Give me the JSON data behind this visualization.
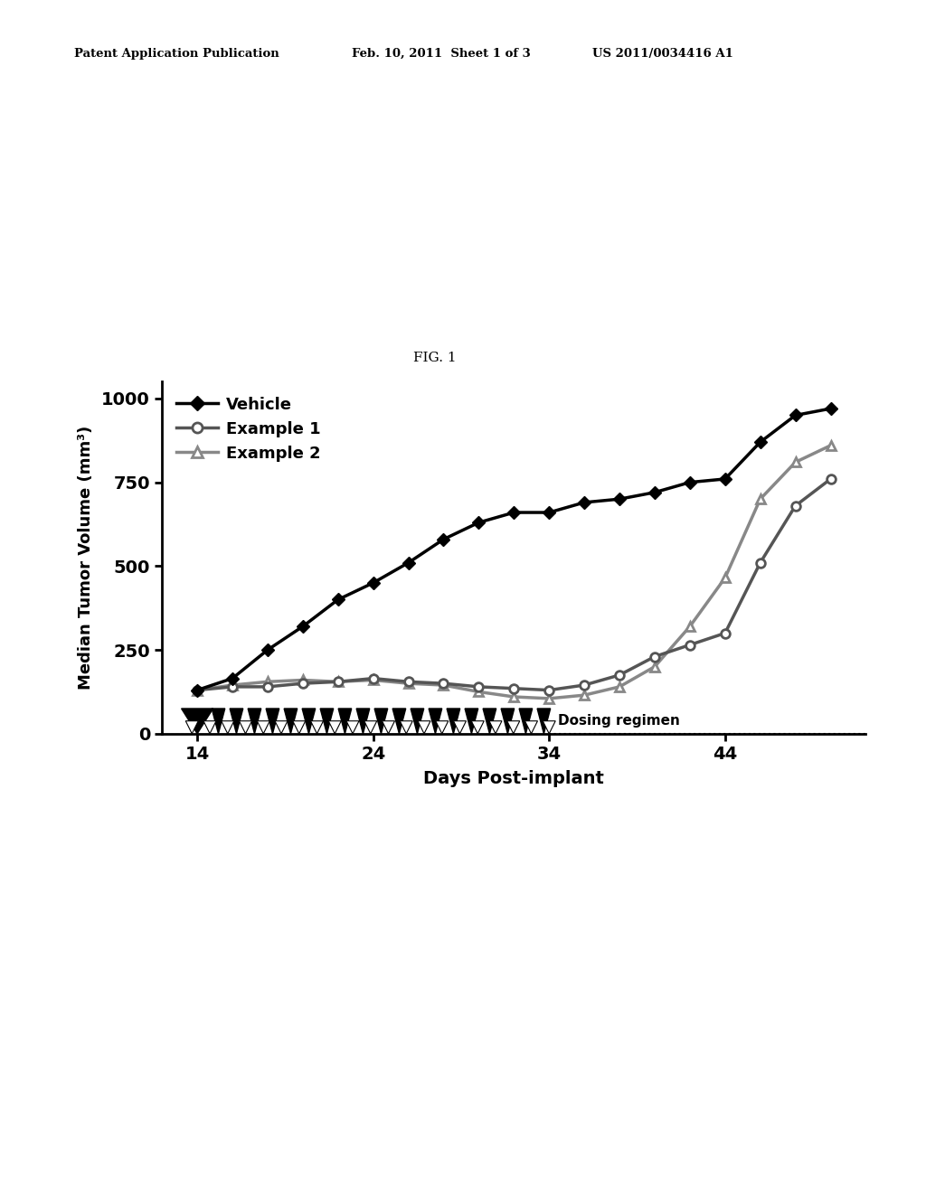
{
  "fig_label": "FIG. 1",
  "xlabel": "Days Post-implant",
  "ylabel": "Median Tumor Volume (mm³)",
  "xlim": [
    12,
    52
  ],
  "ylim": [
    0,
    1050
  ],
  "xticks": [
    14,
    24,
    34,
    44
  ],
  "yticks": [
    0,
    250,
    500,
    750,
    1000
  ],
  "vehicle_x": [
    14,
    16,
    18,
    20,
    22,
    24,
    26,
    28,
    30,
    32,
    34,
    36,
    38,
    40,
    42,
    44,
    46,
    48,
    50
  ],
  "vehicle_y": [
    130,
    165,
    250,
    320,
    400,
    450,
    510,
    580,
    630,
    660,
    660,
    690,
    700,
    720,
    750,
    760,
    870,
    950,
    970
  ],
  "example1_x": [
    14,
    16,
    18,
    20,
    22,
    24,
    26,
    28,
    30,
    32,
    34,
    36,
    38,
    40,
    42,
    44,
    46,
    48,
    50
  ],
  "example1_y": [
    130,
    140,
    140,
    150,
    155,
    165,
    155,
    150,
    140,
    135,
    130,
    145,
    175,
    230,
    265,
    300,
    510,
    680,
    760
  ],
  "example2_x": [
    14,
    16,
    18,
    20,
    22,
    24,
    26,
    28,
    30,
    32,
    34,
    36,
    38,
    40,
    42,
    44,
    46,
    48,
    50
  ],
  "example2_y": [
    130,
    145,
    155,
    160,
    155,
    160,
    150,
    145,
    125,
    110,
    105,
    115,
    140,
    200,
    320,
    465,
    700,
    810,
    860
  ],
  "vehicle_color": "#000000",
  "example1_color": "#555555",
  "example2_color": "#888888",
  "dosing_x_start": 14,
  "dosing_x_end": 34,
  "dosing_label": "Dosing regimen",
  "background_color": "#ffffff",
  "header_left": "Patent Application Publication",
  "header_mid": "Feb. 10, 2011  Sheet 1 of 3",
  "header_right": "US 2011/0034416 A1"
}
